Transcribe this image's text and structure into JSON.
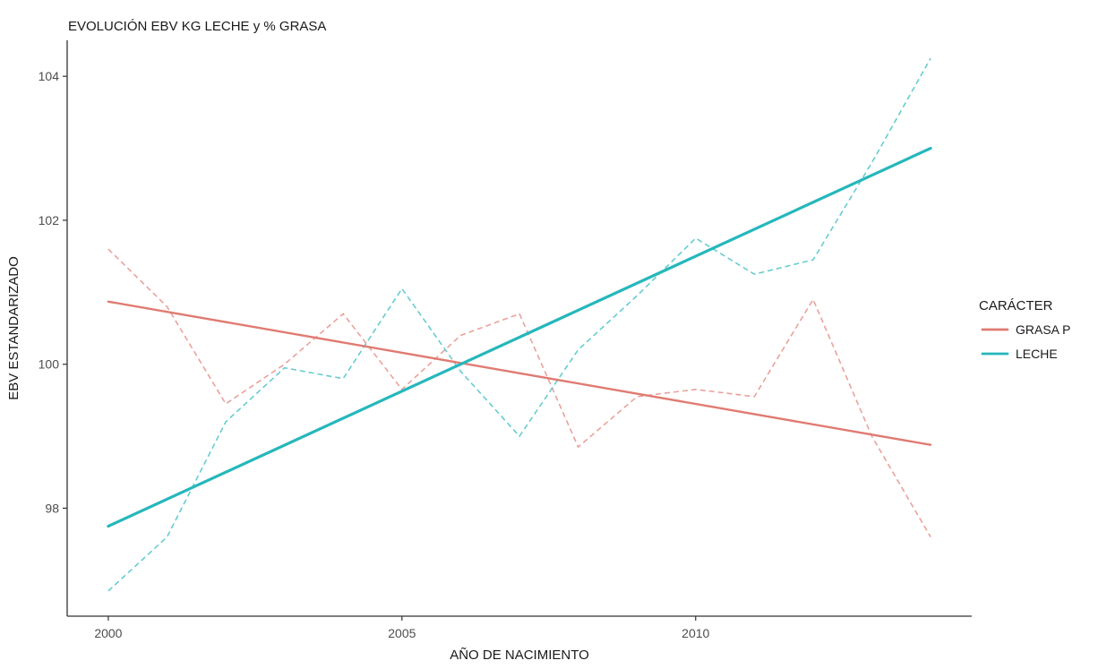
{
  "chart_data": {
    "type": "line",
    "title": "EVOLUCIÓN EBV KG LECHE y % GRASA",
    "xlabel": "AÑO DE NACIMIENTO",
    "ylabel": "EBV ESTANDARIZADO",
    "xlim": [
      1999.3,
      2014.7
    ],
    "ylim": [
      96.5,
      104.5
    ],
    "x_ticks": [
      2000,
      2005,
      2010
    ],
    "y_ticks": [
      98,
      100,
      102,
      104
    ],
    "grid": false,
    "legend": {
      "title": "CARÁCTER",
      "position": "right"
    },
    "series": [
      {
        "name": "GRASA P",
        "color": "#E07B72",
        "x": [
          2000,
          2001,
          2002,
          2003,
          2004,
          2005,
          2006,
          2007,
          2008,
          2009,
          2010,
          2011,
          2012,
          2013,
          2014
        ],
        "observed": [
          101.6,
          100.8,
          99.45,
          100.0,
          100.7,
          99.65,
          100.4,
          100.7,
          98.85,
          99.55,
          99.65,
          99.55,
          100.9,
          99.0,
          97.6
        ],
        "trend": [
          100.87,
          98.88
        ]
      },
      {
        "name": "LECHE",
        "color": "#25B7BC",
        "x": [
          2000,
          2001,
          2002,
          2003,
          2004,
          2005,
          2006,
          2007,
          2008,
          2009,
          2010,
          2011,
          2012,
          2013,
          2014
        ],
        "observed": [
          96.85,
          97.6,
          99.2,
          99.95,
          99.8,
          101.05,
          99.9,
          99.0,
          100.2,
          100.95,
          101.75,
          101.25,
          101.45,
          102.8,
          104.25
        ],
        "trend": [
          97.75,
          103.0
        ]
      }
    ]
  }
}
